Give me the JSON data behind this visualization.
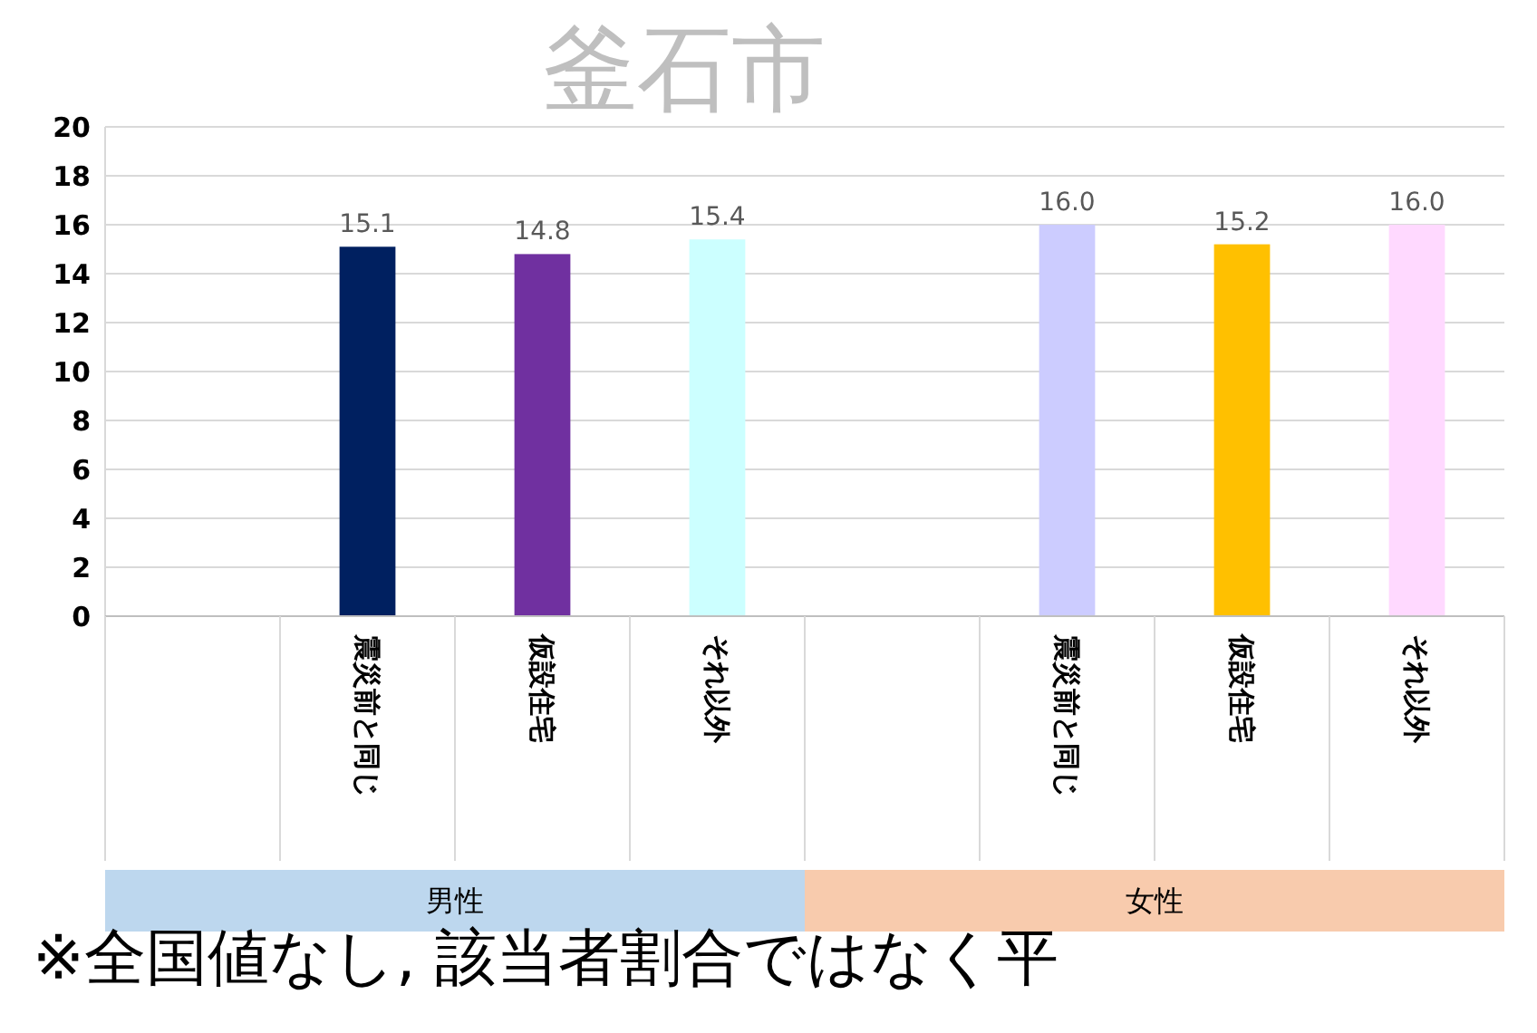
{
  "chart_data": {
    "type": "bar",
    "title": "釜石市",
    "categories": [
      null,
      "震災前と同じ",
      "仮設住宅",
      "それ以外",
      null,
      "震災前と同じ",
      "仮設住宅",
      "それ以外"
    ],
    "values": [
      null,
      15.1,
      14.8,
      15.4,
      null,
      16.0,
      15.2,
      16.0
    ],
    "colors": [
      null,
      "#002060",
      "#7030a0",
      "#ccffff",
      null,
      "#ccccff",
      "#ffc000",
      "#ffd9ff"
    ],
    "value_labels": [
      null,
      "15.1",
      "14.8",
      "15.4",
      null,
      "16.0",
      "15.2",
      "16.0"
    ],
    "ylim": [
      0,
      20
    ],
    "yticks": [
      0,
      2,
      4,
      6,
      8,
      10,
      12,
      14,
      16,
      18,
      20
    ],
    "grid": "y",
    "annotations": [
      "男性",
      "女性",
      "※全国値なし, 該当者割合ではなく平"
    ]
  }
}
